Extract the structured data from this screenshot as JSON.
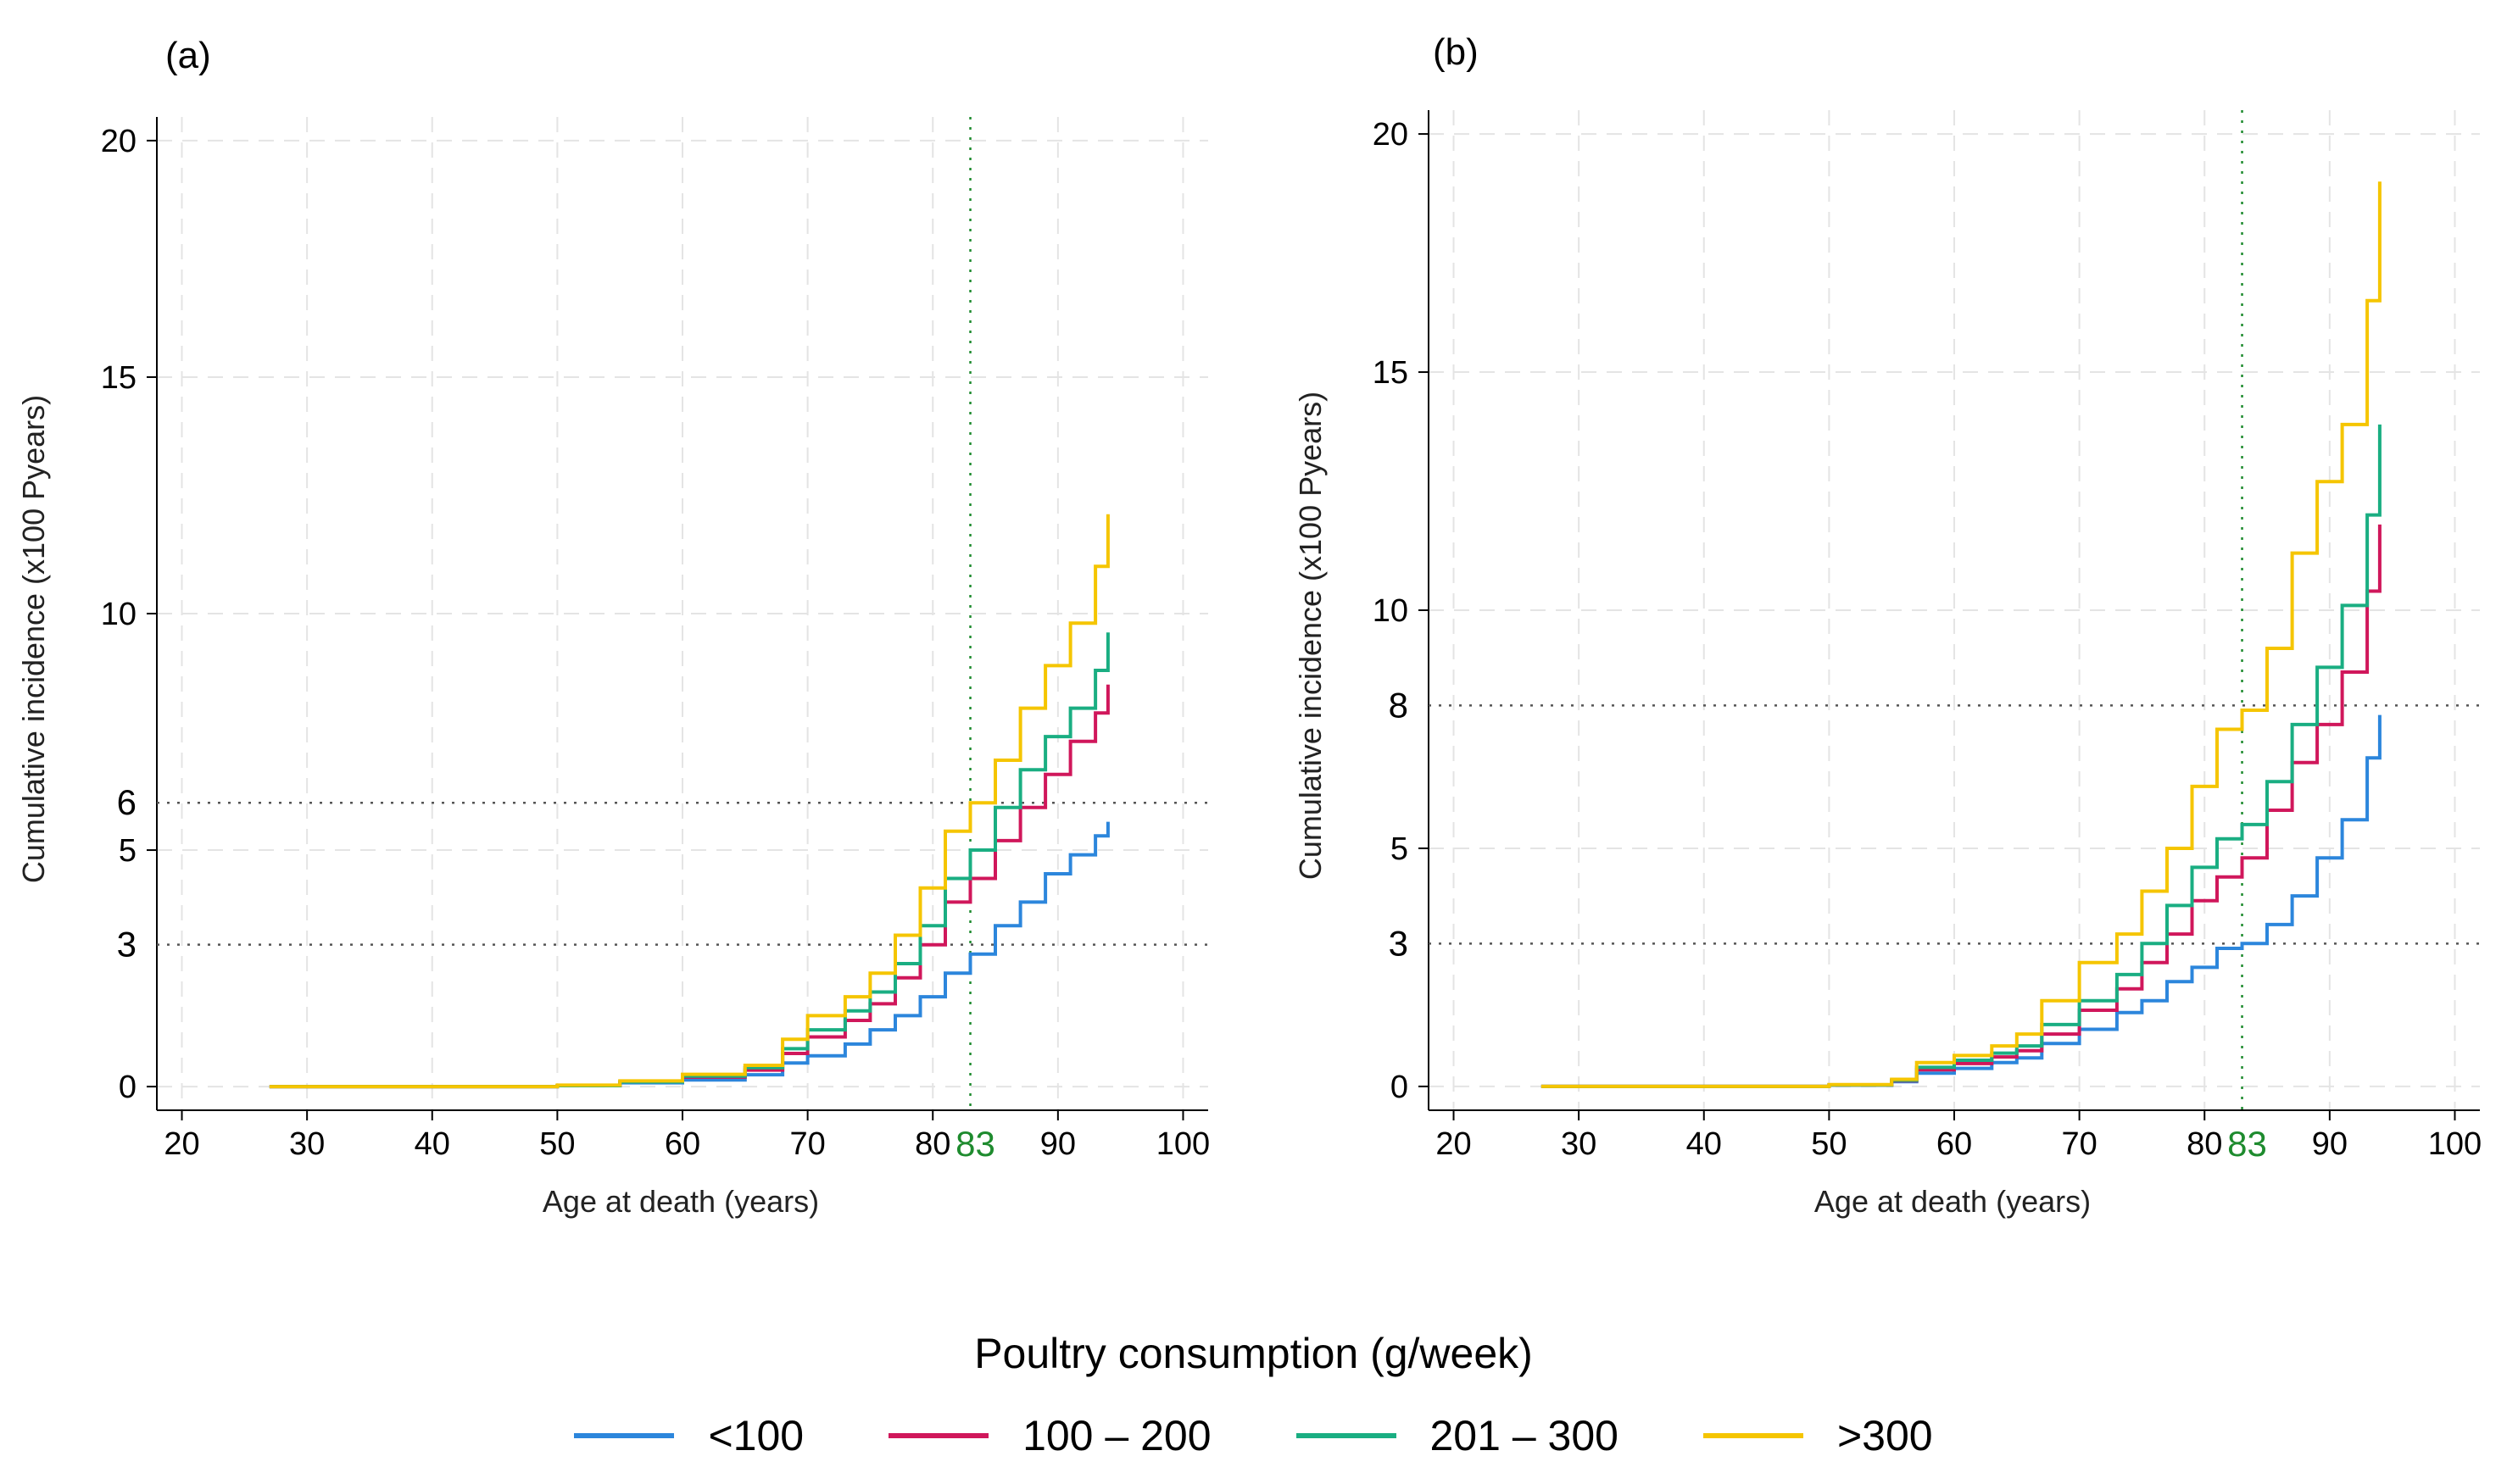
{
  "legend": {
    "title": "Poultry consumption (g/week)",
    "entries": [
      {
        "label": "<100",
        "color": "#2C86DC"
      },
      {
        "label": "100 – 200",
        "color": "#D0175B"
      },
      {
        "label": "201 – 300",
        "color": "#1AAE82"
      },
      {
        "label": ">300",
        "color": "#F5C500"
      }
    ]
  },
  "chart_data": [
    {
      "type": "line",
      "title": "(a)",
      "xlabel": "Age at death (years)",
      "ylabel": "Cumulative incidence (x100 Pyears)",
      "xlim": [
        18,
        102
      ],
      "ylim": [
        -0.5,
        20.5
      ],
      "xticks": [
        20,
        30,
        40,
        50,
        60,
        70,
        80,
        90,
        100
      ],
      "yticks": [
        0,
        5,
        10,
        15,
        20
      ],
      "grid": true,
      "reference_lines": {
        "horizontal": [
          {
            "value": 3,
            "label": "3"
          },
          {
            "value": 6,
            "label": "6"
          }
        ],
        "vertical": [
          {
            "value": 83,
            "label": "83",
            "color": "#1E8B2E"
          }
        ]
      },
      "series": [
        {
          "name": "<100",
          "color": "#2C86DC",
          "points": [
            [
              27,
              0
            ],
            [
              45,
              0
            ],
            [
              50,
              0.02
            ],
            [
              55,
              0.08
            ],
            [
              60,
              0.14
            ],
            [
              65,
              0.25
            ],
            [
              68,
              0.5
            ],
            [
              70,
              0.65
            ],
            [
              73,
              0.9
            ],
            [
              75,
              1.2
            ],
            [
              77,
              1.5
            ],
            [
              79,
              1.9
            ],
            [
              81,
              2.4
            ],
            [
              83,
              2.8
            ],
            [
              85,
              3.4
            ],
            [
              87,
              3.9
            ],
            [
              89,
              4.5
            ],
            [
              91,
              4.9
            ],
            [
              93,
              5.3
            ],
            [
              94,
              5.6
            ]
          ]
        },
        {
          "name": "100 – 200",
          "color": "#D0175B",
          "points": [
            [
              27,
              0
            ],
            [
              45,
              0
            ],
            [
              50,
              0.02
            ],
            [
              55,
              0.1
            ],
            [
              60,
              0.2
            ],
            [
              65,
              0.35
            ],
            [
              68,
              0.7
            ],
            [
              70,
              1.05
            ],
            [
              73,
              1.4
            ],
            [
              75,
              1.75
            ],
            [
              77,
              2.3
            ],
            [
              79,
              3.0
            ],
            [
              81,
              3.9
            ],
            [
              83,
              4.4
            ],
            [
              85,
              5.2
            ],
            [
              87,
              5.9
            ],
            [
              89,
              6.6
            ],
            [
              91,
              7.3
            ],
            [
              93,
              7.9
            ],
            [
              94,
              8.5
            ]
          ]
        },
        {
          "name": "201 – 300",
          "color": "#1AAE82",
          "points": [
            [
              27,
              0
            ],
            [
              45,
              0
            ],
            [
              50,
              0.02
            ],
            [
              55,
              0.1
            ],
            [
              60,
              0.22
            ],
            [
              65,
              0.4
            ],
            [
              68,
              0.8
            ],
            [
              70,
              1.2
            ],
            [
              73,
              1.6
            ],
            [
              75,
              2.0
            ],
            [
              77,
              2.6
            ],
            [
              79,
              3.4
            ],
            [
              81,
              4.4
            ],
            [
              83,
              5.0
            ],
            [
              85,
              5.9
            ],
            [
              87,
              6.7
            ],
            [
              89,
              7.4
            ],
            [
              91,
              8.0
            ],
            [
              93,
              8.8
            ],
            [
              94,
              9.6
            ]
          ]
        },
        {
          "name": ">300",
          "color": "#F5C500",
          "points": [
            [
              27,
              0
            ],
            [
              45,
              0
            ],
            [
              50,
              0.03
            ],
            [
              55,
              0.12
            ],
            [
              60,
              0.26
            ],
            [
              65,
              0.45
            ],
            [
              68,
              1.0
            ],
            [
              70,
              1.5
            ],
            [
              73,
              1.9
            ],
            [
              75,
              2.4
            ],
            [
              77,
              3.2
            ],
            [
              79,
              4.2
            ],
            [
              81,
              5.4
            ],
            [
              83,
              6.0
            ],
            [
              85,
              6.9
            ],
            [
              87,
              8.0
            ],
            [
              89,
              8.9
            ],
            [
              91,
              9.8
            ],
            [
              93,
              11.0
            ],
            [
              94,
              12.1
            ]
          ]
        }
      ]
    },
    {
      "type": "line",
      "title": "(b)",
      "xlabel": "Age at death (years)",
      "ylabel": "Cumulative incidence (x100 Pyears)",
      "xlim": [
        18,
        102
      ],
      "ylim": [
        -0.5,
        20.5
      ],
      "xticks": [
        20,
        30,
        40,
        50,
        60,
        70,
        80,
        90,
        100
      ],
      "yticks": [
        0,
        5,
        10,
        15,
        20
      ],
      "grid": true,
      "reference_lines": {
        "horizontal": [
          {
            "value": 3,
            "label": "3"
          },
          {
            "value": 8,
            "label": "8"
          }
        ],
        "vertical": [
          {
            "value": 83,
            "label": "83",
            "color": "#1E8B2E"
          }
        ]
      },
      "series": [
        {
          "name": "<100",
          "color": "#2C86DC",
          "points": [
            [
              27,
              0
            ],
            [
              45,
              0
            ],
            [
              50,
              0.03
            ],
            [
              55,
              0.1
            ],
            [
              57,
              0.28
            ],
            [
              60,
              0.38
            ],
            [
              63,
              0.5
            ],
            [
              65,
              0.6
            ],
            [
              67,
              0.9
            ],
            [
              70,
              1.2
            ],
            [
              73,
              1.55
            ],
            [
              75,
              1.8
            ],
            [
              77,
              2.2
            ],
            [
              79,
              2.5
            ],
            [
              81,
              2.9
            ],
            [
              83,
              3.0
            ],
            [
              85,
              3.4
            ],
            [
              87,
              4.0
            ],
            [
              89,
              4.8
            ],
            [
              91,
              5.6
            ],
            [
              93,
              6.9
            ],
            [
              94,
              7.8
            ]
          ]
        },
        {
          "name": "100 – 200",
          "color": "#D0175B",
          "points": [
            [
              27,
              0
            ],
            [
              45,
              0
            ],
            [
              50,
              0.03
            ],
            [
              55,
              0.12
            ],
            [
              57,
              0.35
            ],
            [
              60,
              0.48
            ],
            [
              63,
              0.62
            ],
            [
              65,
              0.75
            ],
            [
              67,
              1.1
            ],
            [
              70,
              1.6
            ],
            [
              73,
              2.05
            ],
            [
              75,
              2.6
            ],
            [
              77,
              3.2
            ],
            [
              79,
              3.9
            ],
            [
              81,
              4.4
            ],
            [
              83,
              4.8
            ],
            [
              85,
              5.8
            ],
            [
              87,
              6.8
            ],
            [
              89,
              7.6
            ],
            [
              91,
              8.7
            ],
            [
              93,
              10.4
            ],
            [
              94,
              11.8
            ]
          ]
        },
        {
          "name": "201 – 300",
          "color": "#1AAE82",
          "points": [
            [
              27,
              0
            ],
            [
              45,
              0
            ],
            [
              50,
              0.03
            ],
            [
              55,
              0.13
            ],
            [
              57,
              0.4
            ],
            [
              60,
              0.55
            ],
            [
              63,
              0.7
            ],
            [
              65,
              0.85
            ],
            [
              67,
              1.3
            ],
            [
              70,
              1.8
            ],
            [
              73,
              2.35
            ],
            [
              75,
              3.0
            ],
            [
              77,
              3.8
            ],
            [
              79,
              4.6
            ],
            [
              81,
              5.2
            ],
            [
              83,
              5.5
            ],
            [
              85,
              6.4
            ],
            [
              87,
              7.6
            ],
            [
              89,
              8.8
            ],
            [
              91,
              10.1
            ],
            [
              93,
              12.0
            ],
            [
              94,
              13.9
            ]
          ]
        },
        {
          "name": ">300",
          "color": "#F5C500",
          "points": [
            [
              27,
              0
            ],
            [
              45,
              0
            ],
            [
              50,
              0.04
            ],
            [
              55,
              0.15
            ],
            [
              57,
              0.5
            ],
            [
              60,
              0.65
            ],
            [
              63,
              0.85
            ],
            [
              65,
              1.1
            ],
            [
              67,
              1.8
            ],
            [
              70,
              2.6
            ],
            [
              73,
              3.2
            ],
            [
              75,
              4.1
            ],
            [
              77,
              5.0
            ],
            [
              79,
              6.3
            ],
            [
              81,
              7.5
            ],
            [
              83,
              7.9
            ],
            [
              85,
              9.2
            ],
            [
              87,
              11.2
            ],
            [
              89,
              12.7
            ],
            [
              91,
              13.9
            ],
            [
              93,
              16.5
            ],
            [
              94,
              19.0
            ]
          ]
        }
      ]
    }
  ]
}
